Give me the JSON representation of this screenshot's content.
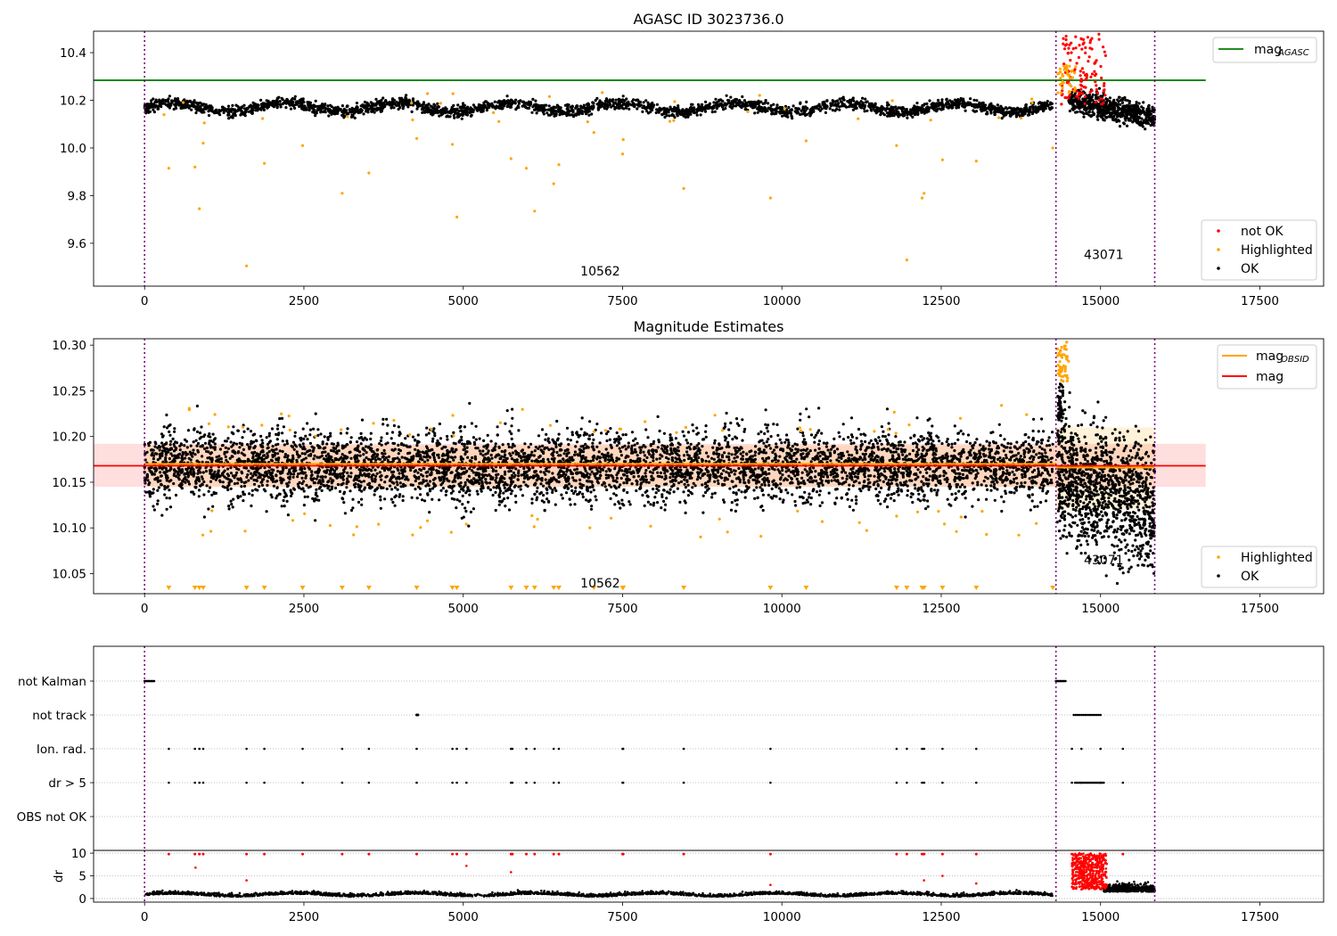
{
  "chart_data": [
    {
      "type": "scatter",
      "title": "AGASC ID 3023736.0",
      "xlim": [
        -800,
        18500
      ],
      "ylim": [
        9.42,
        10.49
      ],
      "xticks": [
        0,
        2500,
        5000,
        7500,
        10000,
        12500,
        15000,
        17500
      ],
      "yticks": [
        9.6,
        9.8,
        10.0,
        10.2,
        10.4
      ],
      "ytick_labels": [
        "9.6",
        "9.8",
        "10.0",
        "10.2",
        "10.4"
      ],
      "vlines": [
        0,
        14300,
        15850
      ],
      "obsid_annotations": [
        {
          "label": "10562",
          "x": 7150,
          "y": 9.465
        },
        {
          "label": "43071",
          "x": 15050,
          "y": 9.535
        }
      ],
      "reference_line": {
        "label": "mag",
        "subscript": "AGASC",
        "value": 10.284,
        "x_end": 16650,
        "color": "#008000"
      },
      "series": [
        {
          "name": "not OK",
          "color": "#ff0000",
          "band": {
            "x": [
              14350,
              15100
            ],
            "y": [
              10.15,
              10.49
            ]
          }
        },
        {
          "name": "Highlighted",
          "color": "#ffa500",
          "points": [
            [
              380,
              9.915
            ],
            [
              790,
              9.92
            ],
            [
              860,
              9.745
            ],
            [
              920,
              10.02
            ],
            [
              1600,
              9.505
            ],
            [
              1880,
              9.935
            ],
            [
              2480,
              10.01
            ],
            [
              3100,
              9.81
            ],
            [
              3520,
              9.895
            ],
            [
              4270,
              10.04
            ],
            [
              4830,
              10.015
            ],
            [
              4900,
              9.71
            ],
            [
              5750,
              9.955
            ],
            [
              5990,
              9.915
            ],
            [
              6120,
              9.735
            ],
            [
              6420,
              9.85
            ],
            [
              6500,
              9.93
            ],
            [
              7050,
              10.065
            ],
            [
              7500,
              9.975
            ],
            [
              7510,
              10.035
            ],
            [
              8460,
              9.83
            ],
            [
              9820,
              9.79
            ],
            [
              10380,
              10.03
            ],
            [
              11800,
              10.01
            ],
            [
              11960,
              9.53
            ],
            [
              12200,
              9.79
            ],
            [
              12230,
              9.81
            ],
            [
              12520,
              9.95
            ],
            [
              13050,
              9.945
            ],
            [
              14250,
              10.0
            ]
          ]
        },
        {
          "name": "OK",
          "color": "#000000",
          "band": {
            "x": [
              0,
              15850
            ],
            "y_center": 10.17,
            "y_spread": 0.035
          }
        }
      ],
      "legends": [
        {
          "entries": [
            {
              "label": "mag",
              "subscript": "AGASC",
              "marker": "line",
              "color": "#008000"
            }
          ]
        },
        {
          "entries": [
            {
              "label": "not OK",
              "marker": "dot",
              "color": "#ff0000"
            },
            {
              "label": "Highlighted",
              "marker": "dot",
              "color": "#ffa500"
            },
            {
              "label": "OK",
              "marker": "dot",
              "color": "#000000"
            }
          ]
        }
      ]
    },
    {
      "type": "scatter",
      "title": "Magnitude Estimates",
      "xlim": [
        -800,
        18500
      ],
      "ylim": [
        10.028,
        10.307
      ],
      "xticks": [
        0,
        2500,
        5000,
        7500,
        10000,
        12500,
        15000,
        17500
      ],
      "yticks": [
        10.05,
        10.1,
        10.15,
        10.2,
        10.25,
        10.3
      ],
      "ytick_labels": [
        "10.05",
        "10.10",
        "10.15",
        "10.20",
        "10.25",
        "10.30"
      ],
      "vlines": [
        0,
        14300,
        15850
      ],
      "obsid_annotations": [
        {
          "label": "10562",
          "x": 7150,
          "y": 10.035
        },
        {
          "label": "43071",
          "x": 15050,
          "y": 10.06
        }
      ],
      "mag_line": {
        "label": "mag",
        "value": 10.168,
        "band": [
          10.145,
          10.192
        ],
        "x_end": 16650,
        "color": "#ff0000"
      },
      "mag_obsid": [
        {
          "label": "mag",
          "subscript": "OBSID",
          "x": [
            0,
            14300
          ],
          "value": 10.17,
          "band": [
            10.145,
            10.19
          ]
        },
        {
          "x": [
            14300,
            15850
          ],
          "value": 10.166,
          "band": [
            10.12,
            10.21
          ]
        }
      ],
      "series": [
        {
          "name": "Highlighted",
          "color": "#ffa500"
        },
        {
          "name": "OK",
          "color": "#000000"
        }
      ],
      "legends": [
        {
          "entries": [
            {
              "label": "mag",
              "subscript": "OBSID",
              "marker": "line",
              "color": "#ffa500"
            },
            {
              "label": "mag",
              "marker": "line",
              "color": "#ff0000"
            }
          ]
        },
        {
          "entries": [
            {
              "label": "Highlighted",
              "marker": "dot",
              "color": "#ffa500"
            },
            {
              "label": "OK",
              "marker": "dot",
              "color": "#000000"
            }
          ]
        }
      ]
    },
    {
      "type": "scatter",
      "xlim": [
        -800,
        18500
      ],
      "xticks": [
        0,
        2500,
        5000,
        7500,
        10000,
        12500,
        15000,
        17500
      ],
      "vlines": [
        0,
        14300,
        15850
      ],
      "flag_rows": [
        "not Kalman",
        "not track",
        "Ion. rad.",
        "dr > 5",
        "OBS not OK"
      ],
      "ion_rad_times": [
        380,
        790,
        860,
        920,
        1600,
        1880,
        2480,
        3100,
        3520,
        4270,
        4830,
        4900,
        5050,
        5750,
        5770,
        5990,
        6120,
        6420,
        6500,
        7500,
        7510,
        8460,
        9820,
        11800,
        11960,
        12200,
        12230,
        12520,
        13050,
        14550,
        14700,
        15000,
        15350
      ],
      "dr_panel": {
        "ylabel": "dr",
        "ylim": [
          -0.8,
          10.6
        ],
        "yticks": [
          0,
          5,
          10
        ],
        "ytick_labels": [
          "0",
          "5",
          "10"
        ],
        "clip": 10
      },
      "series": [
        {
          "name": "dr OK",
          "color": "#000000"
        },
        {
          "name": "dr not OK",
          "color": "#ff0000"
        }
      ]
    }
  ]
}
